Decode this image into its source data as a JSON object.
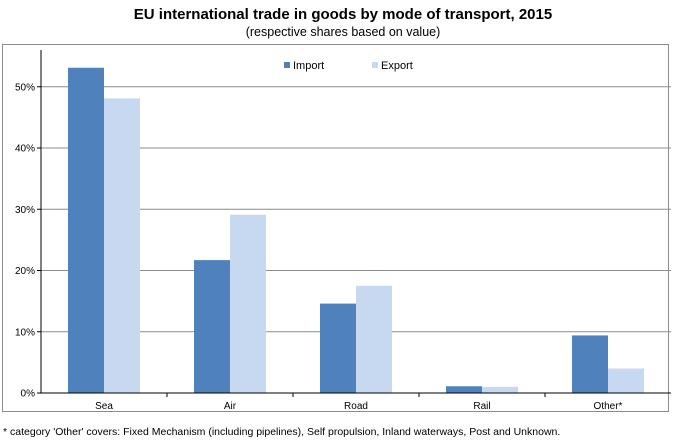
{
  "chart_data": {
    "type": "bar",
    "title": "EU international trade in goods by mode of transport, 2015",
    "subtitle": "(respective shares based on value)",
    "categories": [
      "Sea",
      "Air",
      "Road",
      "Rail",
      "Other*"
    ],
    "series": [
      {
        "name": "Import",
        "color": "#4f81bd",
        "values": [
          53.1,
          21.7,
          14.6,
          1.1,
          9.4
        ]
      },
      {
        "name": "Export",
        "color": "#c6d9f1",
        "values": [
          48.1,
          29.1,
          17.5,
          1.0,
          4.0
        ]
      }
    ],
    "yticks": [
      "0%",
      "10%",
      "20%",
      "30%",
      "40%",
      "50%"
    ],
    "ylim": [
      0,
      56
    ],
    "grid": true,
    "legend": "top-center",
    "xlabel": "",
    "ylabel": ""
  },
  "footnote": "* category 'Other' covers: Fixed Mechanism (including pipelines), Self propulsion, Inland waterways, Post and Unknown."
}
